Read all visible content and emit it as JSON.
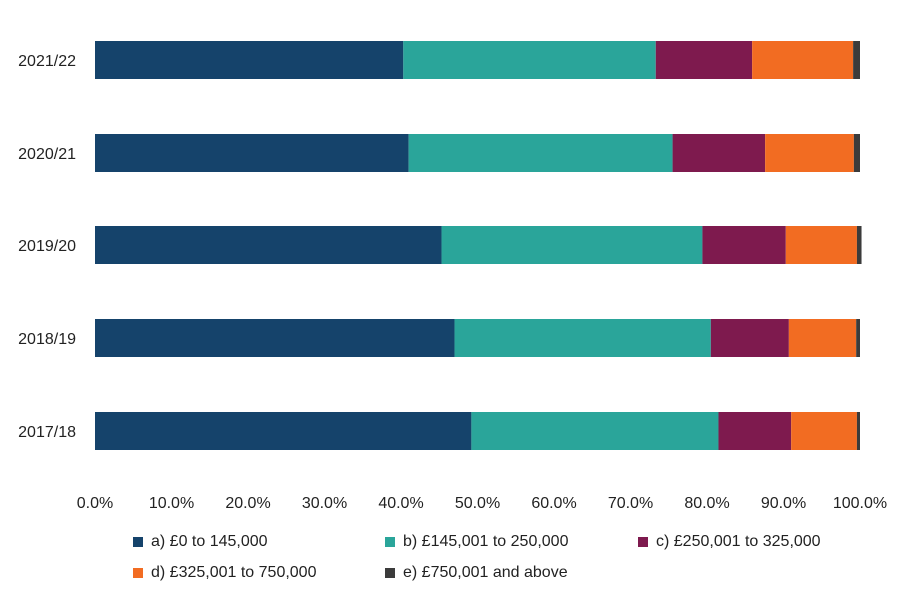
{
  "chart_data": {
    "type": "bar",
    "orientation": "horizontal",
    "stacked": true,
    "categories": [
      "2021/22",
      "2020/21",
      "2019/20",
      "2018/19",
      "2017/18"
    ],
    "series": [
      {
        "name": "a) £0 to 145,000",
        "color": "#15436b",
        "values": [
          40.3,
          41.0,
          45.3,
          47.0,
          49.2
        ]
      },
      {
        "name": "b) £145,001 to 250,000",
        "color": "#2aa59a",
        "values": [
          33.0,
          34.5,
          34.1,
          33.5,
          32.3
        ]
      },
      {
        "name": "c) £250,001 to 325,000",
        "color": "#7e1a4e",
        "values": [
          12.6,
          12.1,
          10.9,
          10.2,
          9.5
        ]
      },
      {
        "name": "d) £325,001 to 750,000",
        "color": "#f26c22",
        "values": [
          13.2,
          11.6,
          9.3,
          8.8,
          8.6
        ]
      },
      {
        "name": "e) £750,001 and above",
        "color": "#3b3b3b",
        "values": [
          0.9,
          0.8,
          0.6,
          0.5,
          0.4
        ]
      }
    ],
    "x_ticks": [
      "0.0%",
      "10.0%",
      "20.0%",
      "30.0%",
      "40.0%",
      "50.0%",
      "60.0%",
      "70.0%",
      "80.0%",
      "90.0%",
      "100.0%"
    ],
    "xlim": [
      0,
      100
    ],
    "xlabel": "",
    "ylabel": "",
    "title": "",
    "grid": false,
    "legend_position": "bottom"
  }
}
